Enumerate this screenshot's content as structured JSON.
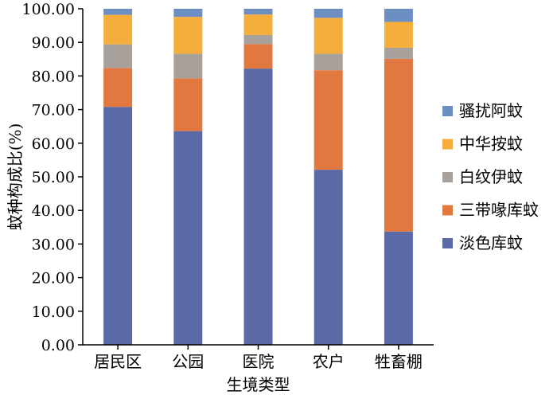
{
  "chart_data": {
    "type": "bar",
    "stacked": true,
    "xlabel": "生境类型",
    "ylabel": "蚊种构成比(%)",
    "ylim": [
      0,
      100
    ],
    "yticks": [
      "0.00",
      "10.00",
      "20.00",
      "30.00",
      "40.00",
      "50.00",
      "60.00",
      "70.00",
      "80.00",
      "90.00",
      "100.00"
    ],
    "legend_position": "right",
    "grid": false,
    "categories": [
      "居民区",
      "公园",
      "医院",
      "农户",
      "牲畜棚"
    ],
    "series": [
      {
        "name": "淡色库蚊",
        "color": "#5a6aa6",
        "values": [
          70.8,
          63.6,
          82.2,
          52.1,
          33.7
        ]
      },
      {
        "name": "三带喙库蚊",
        "color": "#e07840",
        "values": [
          11.6,
          15.7,
          7.3,
          29.6,
          51.4
        ]
      },
      {
        "name": "白纹伊蚊",
        "color": "#a7a09b",
        "values": [
          7.0,
          7.3,
          2.7,
          4.9,
          3.3
        ]
      },
      {
        "name": "中华按蚊",
        "color": "#f5ae3b",
        "values": [
          8.8,
          11.0,
          6.1,
          10.7,
          7.7
        ]
      },
      {
        "name": "骚扰阿蚊",
        "color": "#6d8ec2",
        "values": [
          1.8,
          2.4,
          1.7,
          2.7,
          3.9
        ]
      }
    ],
    "legend_order": [
      "骚扰阿蚊",
      "中华按蚊",
      "白纹伊蚊",
      "三带喙库蚊",
      "淡色库蚊"
    ]
  }
}
